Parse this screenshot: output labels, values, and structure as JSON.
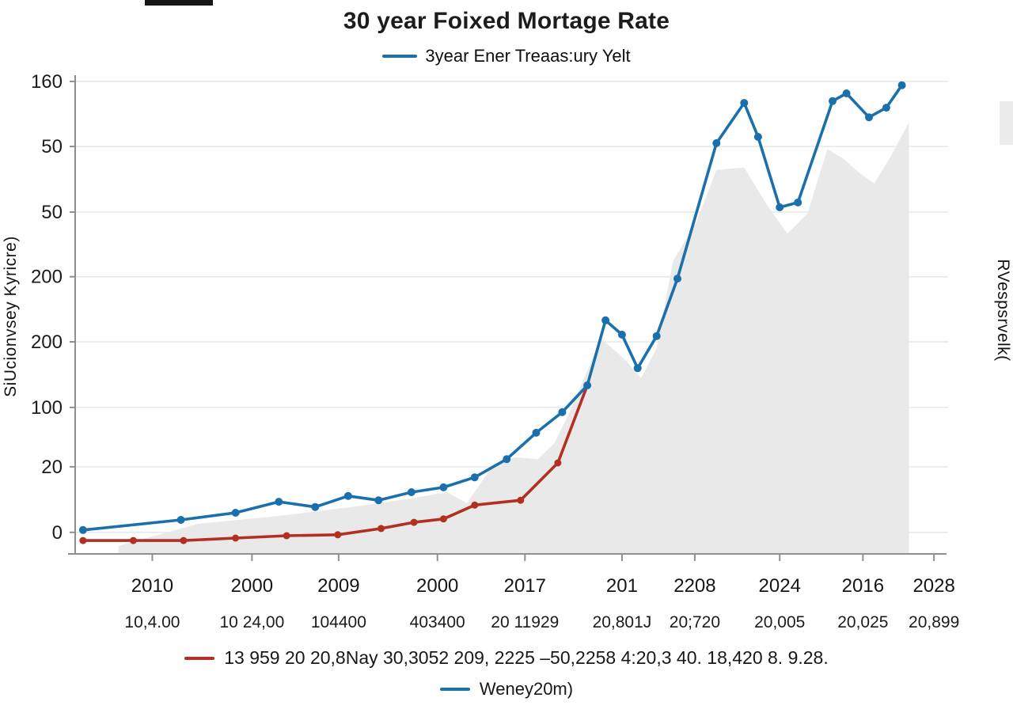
{
  "page": {
    "title": "30 year Foixed Mortage Rate",
    "top_legend": {
      "label": "3year Ener Treaas:ury Yelt",
      "color": "#1a6fad"
    },
    "left_axis_label": "SiUcionvsey Kyricre)",
    "right_axis_label": "RVespsrvelk(",
    "bottom_legend_red": {
      "label": "13 959 20 20,8Nay  30,3052 209, 2225 –50,2258 4:20,3 40. 18,420 8. 9.28.",
      "color": "#b13022"
    },
    "bottom_legend_blue": {
      "label": "Weney20m)",
      "color": "#1a6fad"
    }
  },
  "chart_data": {
    "type": "line",
    "title": "30 year Foixed Mortage Rate",
    "grid": "horizontal",
    "legend_position": "top-and-bottom",
    "xlim": [
      0,
      100
    ],
    "ylim": [
      0,
      100
    ],
    "axis_color": "#8f8f8f",
    "grid_color": "#e7e7e7",
    "y_ticks": [
      {
        "pos": 98.7,
        "label": "160"
      },
      {
        "pos": 85.1,
        "label": "50"
      },
      {
        "pos": 71.4,
        "label": "50"
      },
      {
        "pos": 57.9,
        "label": "200"
      },
      {
        "pos": 44.3,
        "label": "200"
      },
      {
        "pos": 30.6,
        "label": "100"
      },
      {
        "pos": 18.2,
        "label": "20"
      },
      {
        "pos": 4.5,
        "label": "0"
      }
    ],
    "x_ticks": [
      {
        "pos": 8.9,
        "label": "2010",
        "sublabel": "10,4.00"
      },
      {
        "pos": 20.4,
        "label": "2000",
        "sublabel": "10 24,00"
      },
      {
        "pos": 30.4,
        "label": "2009",
        "sublabel": "104400"
      },
      {
        "pos": 41.8,
        "label": "2000",
        "sublabel": "403400"
      },
      {
        "pos": 51.9,
        "label": "2017",
        "sublabel": "20 11929"
      },
      {
        "pos": 63.1,
        "label": "201",
        "sublabel": "20,801J"
      },
      {
        "pos": 71.5,
        "label": "2208",
        "sublabel": "20;720"
      },
      {
        "pos": 81.3,
        "label": "2024",
        "sublabel": "20,005"
      },
      {
        "pos": 90.9,
        "label": "2016",
        "sublabel": "20,025"
      },
      {
        "pos": 99.1,
        "label": "2028",
        "sublabel": "20,899"
      }
    ],
    "series": [
      {
        "name": "gray-area-background",
        "type": "area",
        "color": "#e9e9e9",
        "points": [
          [
            5.0,
            0
          ],
          [
            5.0,
            1.7
          ],
          [
            14.2,
            6.3
          ],
          [
            23.3,
            7.9
          ],
          [
            32.4,
            9.9
          ],
          [
            38.8,
            11.6
          ],
          [
            42.9,
            12.9
          ],
          [
            45.2,
            10.6
          ],
          [
            48.0,
            17.9
          ],
          [
            50.7,
            20.2
          ],
          [
            53.4,
            19.8
          ],
          [
            55.3,
            23.1
          ],
          [
            57.1,
            29.8
          ],
          [
            60.7,
            45.0
          ],
          [
            63.5,
            40.5
          ],
          [
            65.3,
            36.7
          ],
          [
            67.1,
            43.0
          ],
          [
            69.0,
            61.2
          ],
          [
            71.7,
            69.4
          ],
          [
            74.0,
            80.2
          ],
          [
            77.2,
            80.7
          ],
          [
            79.9,
            72.7
          ],
          [
            82.2,
            66.9
          ],
          [
            84.5,
            71.1
          ],
          [
            86.8,
            84.6
          ],
          [
            88.6,
            82.6
          ],
          [
            90.4,
            79.7
          ],
          [
            92.2,
            77.4
          ],
          [
            94.1,
            83.0
          ],
          [
            96.2,
            90.1
          ],
          [
            96.2,
            0
          ]
        ]
      },
      {
        "name": "13 959 20 20,8Nay 30,3052 209, 2225 –50,2258 4:20,3 40. 18,420 8. 9.28.",
        "type": "line",
        "color": "#b13022",
        "markers": true,
        "points": [
          [
            0.9,
            2.8
          ],
          [
            6.7,
            2.8
          ],
          [
            12.5,
            2.8
          ],
          [
            18.5,
            3.3
          ],
          [
            24.4,
            3.8
          ],
          [
            30.3,
            4.0
          ],
          [
            35.3,
            5.3
          ],
          [
            39.1,
            6.6
          ],
          [
            42.5,
            7.3
          ],
          [
            46.1,
            10.2
          ],
          [
            51.4,
            11.2
          ],
          [
            55.7,
            19.0
          ],
          [
            59.1,
            35.2
          ]
        ]
      },
      {
        "name": "3year Ener Treaas:ury Yelt",
        "type": "line",
        "color": "#1a6fad",
        "markers": true,
        "points": [
          [
            0.9,
            5.0
          ],
          [
            12.2,
            7.1
          ],
          [
            18.5,
            8.6
          ],
          [
            23.5,
            10.9
          ],
          [
            27.7,
            9.8
          ],
          [
            31.5,
            12.1
          ],
          [
            35.0,
            11.2
          ],
          [
            38.8,
            12.9
          ],
          [
            42.5,
            13.9
          ],
          [
            46.1,
            16.0
          ],
          [
            49.8,
            19.8
          ],
          [
            53.2,
            25.3
          ],
          [
            56.2,
            29.6
          ],
          [
            59.1,
            35.2
          ],
          [
            61.2,
            48.8
          ],
          [
            63.1,
            45.8
          ],
          [
            64.9,
            38.8
          ],
          [
            67.1,
            45.5
          ],
          [
            69.5,
            57.5
          ],
          [
            74.0,
            85.8
          ],
          [
            77.2,
            94.2
          ],
          [
            78.8,
            87.1
          ],
          [
            81.3,
            72.4
          ],
          [
            83.4,
            73.4
          ],
          [
            87.4,
            94.6
          ],
          [
            89.0,
            96.2
          ],
          [
            91.6,
            91.2
          ],
          [
            93.6,
            93.2
          ],
          [
            95.4,
            97.9
          ]
        ]
      }
    ]
  }
}
